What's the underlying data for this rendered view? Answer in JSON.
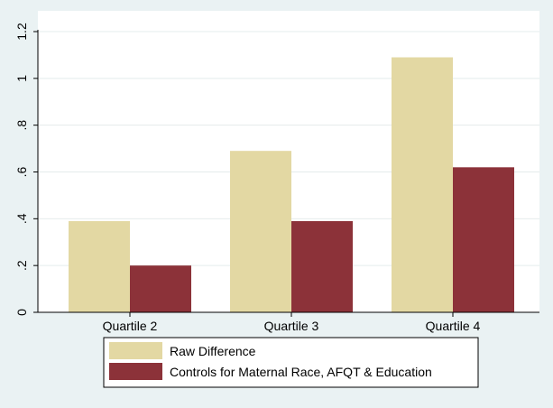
{
  "chart_data": {
    "type": "bar",
    "title": "",
    "xlabel": "",
    "ylabel": "",
    "categories": [
      "Quartile 2",
      "Quartile 3",
      "Quartile 4"
    ],
    "series": [
      {
        "name": "Raw Difference",
        "values": [
          0.39,
          0.69,
          1.09
        ],
        "color": "#e3d8a3"
      },
      {
        "name": "Controls for Maternal Race, AFQT & Education",
        "values": [
          0.2,
          0.39,
          0.62
        ],
        "color": "#8c3239"
      }
    ],
    "ylim": [
      0,
      1.2
    ],
    "yticks": [
      {
        "value": 0,
        "label": "0"
      },
      {
        "value": 0.2,
        "label": ".2"
      },
      {
        "value": 0.4,
        "label": ".4"
      },
      {
        "value": 0.6,
        "label": ".6"
      },
      {
        "value": 0.8,
        "label": ".8"
      },
      {
        "value": 1.0,
        "label": "1"
      },
      {
        "value": 1.2,
        "label": "1.2"
      }
    ],
    "grid": true,
    "legend": {
      "position": "bottom"
    }
  }
}
